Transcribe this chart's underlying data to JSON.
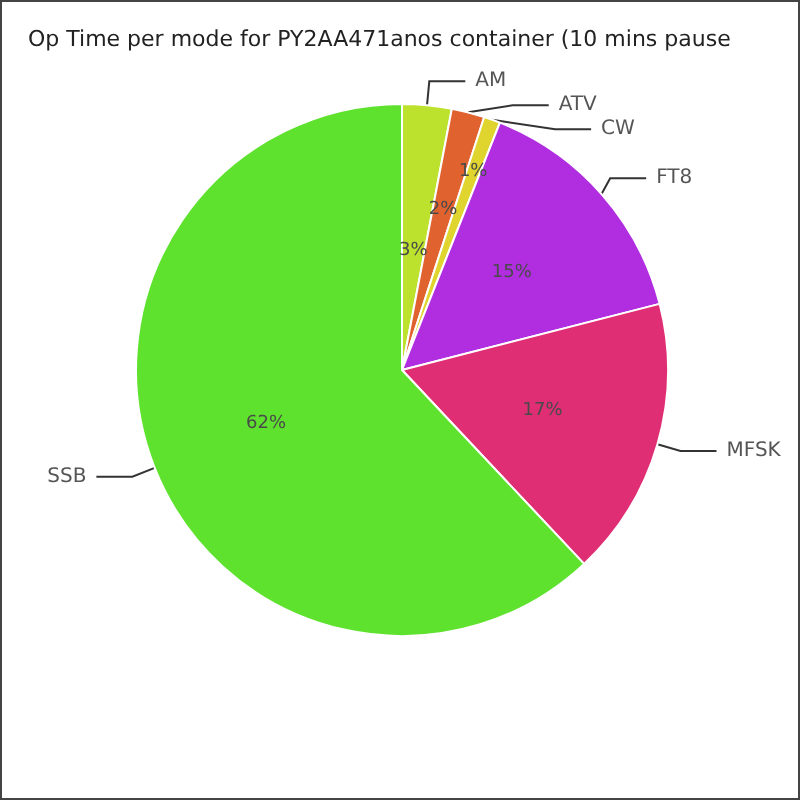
{
  "chart_data": {
    "type": "pie",
    "title": "Op Time per mode for PY2AA471anos container (10 mins pause",
    "categories": [
      "AM",
      "ATV",
      "CW",
      "FT8",
      "MFSK",
      "SSB"
    ],
    "values": [
      3,
      2,
      1,
      15,
      17,
      62
    ],
    "colors": [
      "#bde22e",
      "#e0622e",
      "#e0d42e",
      "#b02ee0",
      "#e02e74",
      "#5ee22e"
    ],
    "value_labels": [
      "3%",
      "2%",
      "1%",
      "15%",
      "17%",
      "62%"
    ],
    "legend": false
  }
}
